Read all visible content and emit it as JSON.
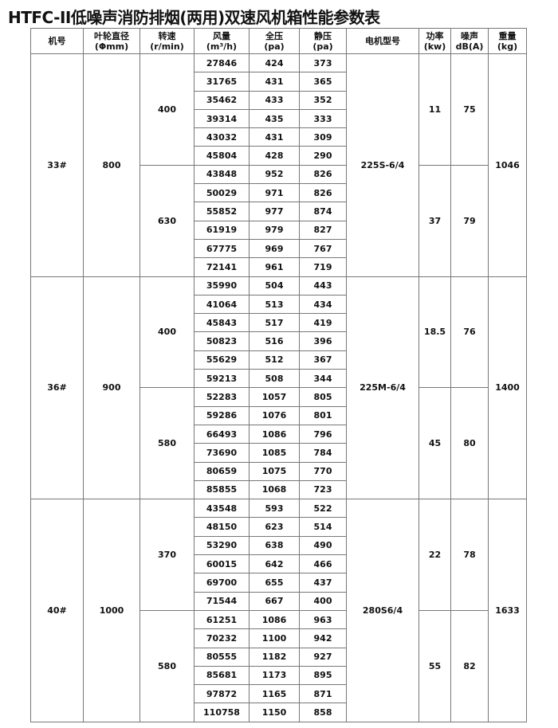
{
  "title": "HTFC-II低噪声消防排烟(两用)双速风机箱性能参数表",
  "headers": [
    {
      "label": "机号",
      "unit": ""
    },
    {
      "label": "叶轮直径",
      "unit": "(Φmm)"
    },
    {
      "label": "转速",
      "unit": "(r/min)"
    },
    {
      "label": "风量",
      "unit": "(m³/h)"
    },
    {
      "label": "全压",
      "unit": "(pa)"
    },
    {
      "label": "静压",
      "unit": "(pa)"
    },
    {
      "label": "电机型号",
      "unit": ""
    },
    {
      "label": "功率",
      "unit": "(kw)"
    },
    {
      "label": "噪声",
      "unit": "dB(A)"
    },
    {
      "label": "重量",
      "unit": "(kg)"
    }
  ],
  "groups": [
    {
      "model": "33#",
      "diameter": "800",
      "motor": "225S-6/4",
      "weight": "1046",
      "speeds": [
        {
          "speed": "400",
          "power": "11",
          "noise": "75",
          "rows": [
            [
              "27846",
              "424",
              "373"
            ],
            [
              "31765",
              "431",
              "365"
            ],
            [
              "35462",
              "433",
              "352"
            ],
            [
              "39314",
              "435",
              "333"
            ],
            [
              "43032",
              "431",
              "309"
            ],
            [
              "45804",
              "428",
              "290"
            ]
          ]
        },
        {
          "speed": "630",
          "power": "37",
          "noise": "79",
          "rows": [
            [
              "43848",
              "952",
              "826"
            ],
            [
              "50029",
              "971",
              "826"
            ],
            [
              "55852",
              "977",
              "874"
            ],
            [
              "61919",
              "979",
              "827"
            ],
            [
              "67775",
              "969",
              "767"
            ],
            [
              "72141",
              "961",
              "719"
            ]
          ]
        }
      ]
    },
    {
      "model": "36#",
      "diameter": "900",
      "motor": "225M-6/4",
      "weight": "1400",
      "speeds": [
        {
          "speed": "400",
          "power": "18.5",
          "noise": "76",
          "rows": [
            [
              "35990",
              "504",
              "443"
            ],
            [
              "41064",
              "513",
              "434"
            ],
            [
              "45843",
              "517",
              "419"
            ],
            [
              "50823",
              "516",
              "396"
            ],
            [
              "55629",
              "512",
              "367"
            ],
            [
              "59213",
              "508",
              "344"
            ]
          ]
        },
        {
          "speed": "580",
          "power": "45",
          "noise": "80",
          "rows": [
            [
              "52283",
              "1057",
              "805"
            ],
            [
              "59286",
              "1076",
              "801"
            ],
            [
              "66493",
              "1086",
              "796"
            ],
            [
              "73690",
              "1085",
              "784"
            ],
            [
              "80659",
              "1075",
              "770"
            ],
            [
              "85855",
              "1068",
              "723"
            ]
          ]
        }
      ]
    },
    {
      "model": "40#",
      "diameter": "1000",
      "motor": "280S6/4",
      "weight": "1633",
      "speeds": [
        {
          "speed": "370",
          "power": "22",
          "noise": "78",
          "rows": [
            [
              "43548",
              "593",
              "522"
            ],
            [
              "48150",
              "623",
              "514"
            ],
            [
              "53290",
              "638",
              "490"
            ],
            [
              "60015",
              "642",
              "466"
            ],
            [
              "69700",
              "655",
              "437"
            ],
            [
              "71544",
              "667",
              "400"
            ]
          ]
        },
        {
          "speed": "580",
          "power": "55",
          "noise": "82",
          "rows": [
            [
              "61251",
              "1086",
              "963"
            ],
            [
              "70232",
              "1100",
              "942"
            ],
            [
              "80555",
              "1182",
              "927"
            ],
            [
              "85681",
              "1173",
              "895"
            ],
            [
              "97872",
              "1165",
              "871"
            ],
            [
              "110758",
              "1150",
              "858"
            ]
          ]
        }
      ]
    }
  ]
}
